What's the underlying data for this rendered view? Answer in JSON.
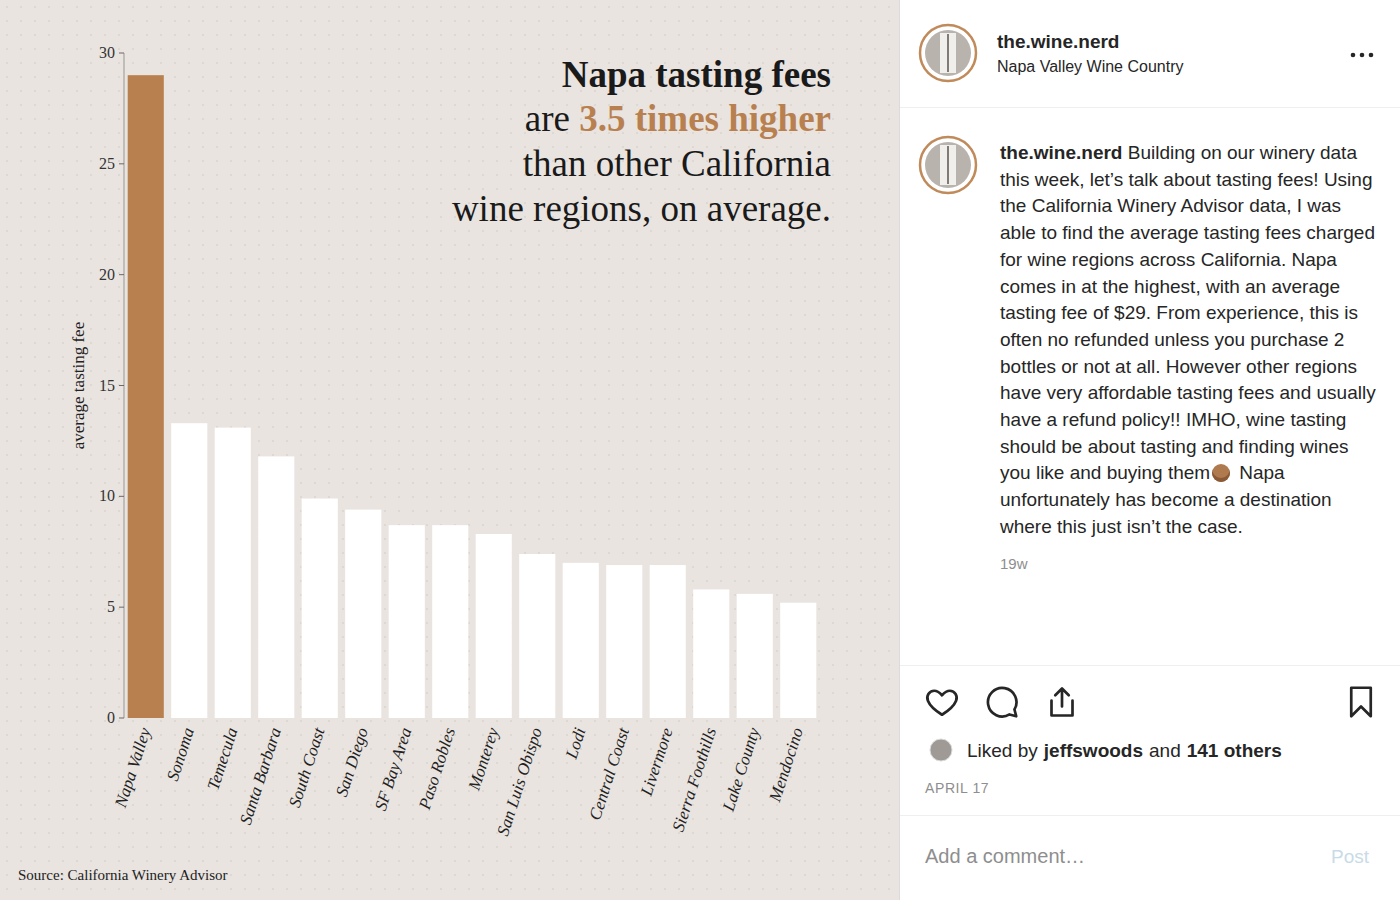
{
  "chart_data": {
    "type": "bar",
    "title": "Napa tasting fees",
    "subtitle": [
      "are 3.5 times higher",
      "than other California",
      "wine regions, on average."
    ],
    "highlight": "3.5 times higher",
    "y_label": "average tasting fee",
    "source": "Source: California Winery Advisor",
    "categories": [
      "Napa Valley",
      "Sonoma",
      "Temecula",
      "Santa Barbara",
      "South Coast",
      "San Diego",
      "SF Bay Area",
      "Paso Robles",
      "Monterey",
      "San Luis Obispo",
      "Lodi",
      "Central Coast",
      "Livermore",
      "Sierra Foothills",
      "Lake County",
      "Mendocino"
    ],
    "values": [
      29,
      13.3,
      13.1,
      11.8,
      9.9,
      9.4,
      8.7,
      8.7,
      8.3,
      7.4,
      7.0,
      6.9,
      6.9,
      5.8,
      5.6,
      5.2
    ],
    "colors": [
      "#b9804f",
      "#ffffff",
      "#ffffff",
      "#ffffff",
      "#ffffff",
      "#ffffff",
      "#ffffff",
      "#ffffff",
      "#ffffff",
      "#ffffff",
      "#ffffff",
      "#ffffff",
      "#ffffff",
      "#ffffff",
      "#ffffff",
      "#ffffff"
    ],
    "ylim": [
      0,
      30
    ],
    "yticks": [
      0,
      5,
      10,
      15,
      20,
      25,
      30
    ],
    "grid": false
  },
  "post": {
    "username": "the.wine.nerd",
    "location": "Napa Valley Wine Country",
    "caption": [
      "Building on our winery data this week, let’s talk about tasting fees! Using the California Winery Advisor data, I was able to find the average tasting fees charged for wine regions across California. Napa comes in at the highest, with an average tasting fee of $29. From experience, this is often no refunded unless you purchase 2 bottles or not at all. However other regions have very affordable tasting fees and usually have a refund policy!! IMHO, wine tasting should be about tasting and finding wines you like and buying them",
      "Napa unfortunately has become a destination where this just isn’t the case."
    ],
    "age": "19w",
    "likes": {
      "prefix": "Liked by",
      "user": "jeffswoods",
      "joiner": "and",
      "others": "141 others"
    },
    "date": "APRIL 17",
    "comment_placeholder": "Add a comment…",
    "post_button": "Post"
  }
}
